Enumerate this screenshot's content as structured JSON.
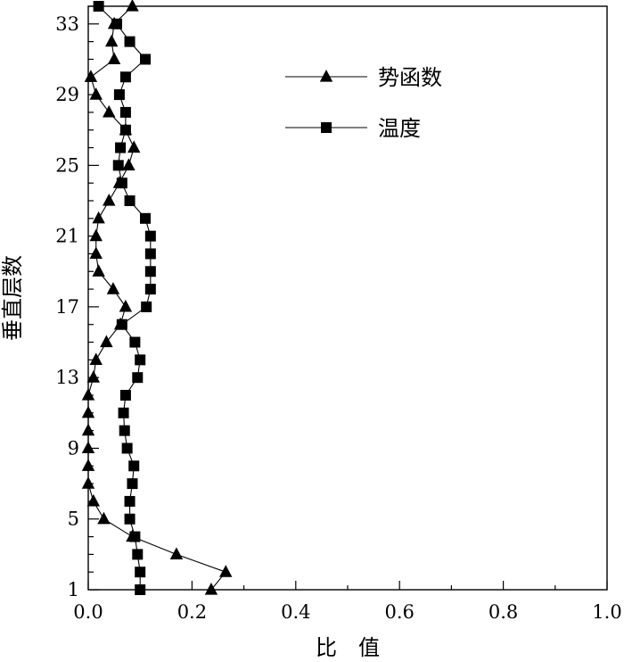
{
  "chart_data": {
    "type": "line",
    "xlabel": "比　值",
    "ylabel": "垂直层数",
    "xlim": [
      0.0,
      1.0
    ],
    "ylim": [
      1,
      34
    ],
    "xticks": [
      0.0,
      0.2,
      0.4,
      0.6,
      0.8,
      1.0
    ],
    "xtick_labels": [
      "0.0",
      "0.2",
      "0.4",
      "0.6",
      "0.8",
      "1.0"
    ],
    "yticks": [
      1,
      5,
      9,
      13,
      17,
      21,
      25,
      29,
      33
    ],
    "ytick_labels": [
      "1",
      "5",
      "9",
      "13",
      "17",
      "21",
      "25",
      "29",
      "33"
    ],
    "grid": false,
    "legend_position": "top-right",
    "series": [
      {
        "name": "势函数",
        "marker": "triangle",
        "color": "#000000",
        "y": [
          1,
          2,
          3,
          4,
          5,
          6,
          7,
          8,
          9,
          10,
          11,
          12,
          13,
          14,
          15,
          16,
          17,
          18,
          19,
          20,
          21,
          22,
          23,
          24,
          25,
          26,
          27,
          28,
          29,
          30,
          31,
          32,
          33,
          34
        ],
        "values": [
          0.237,
          0.265,
          0.17,
          0.085,
          0.03,
          0.01,
          0.0,
          0.0,
          0.0,
          0.0,
          0.0,
          0.0,
          0.01,
          0.015,
          0.035,
          0.062,
          0.072,
          0.048,
          0.02,
          0.015,
          0.015,
          0.02,
          0.04,
          0.06,
          0.078,
          0.088,
          0.072,
          0.04,
          0.015,
          0.005,
          0.05,
          0.045,
          0.05,
          0.085
        ]
      },
      {
        "name": "温度",
        "marker": "square",
        "color": "#000000",
        "y": [
          1,
          2,
          3,
          4,
          5,
          6,
          7,
          8,
          9,
          10,
          11,
          12,
          13,
          14,
          15,
          16,
          17,
          18,
          19,
          20,
          21,
          22,
          23,
          24,
          25,
          26,
          27,
          28,
          29,
          30,
          31,
          32,
          33,
          34
        ],
        "values": [
          0.1,
          0.1,
          0.095,
          0.09,
          0.08,
          0.08,
          0.085,
          0.088,
          0.075,
          0.07,
          0.068,
          0.072,
          0.095,
          0.1,
          0.09,
          0.065,
          0.112,
          0.12,
          0.12,
          0.12,
          0.12,
          0.11,
          0.08,
          0.065,
          0.058,
          0.062,
          0.072,
          0.072,
          0.06,
          0.072,
          0.11,
          0.08,
          0.055,
          0.02
        ]
      }
    ]
  }
}
